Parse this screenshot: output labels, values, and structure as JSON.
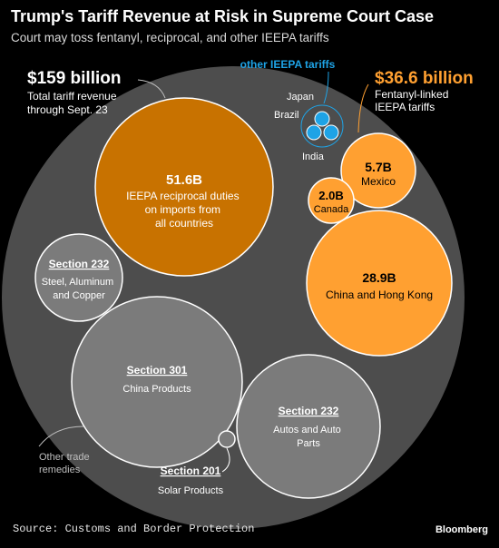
{
  "header": {
    "title": "Trump's Tariff Revenue at Risk in Supreme Court Case",
    "subtitle": "Court may toss fentanyl, reciprocal, and other IEEPA tariffs"
  },
  "footer": {
    "source": "Source: Customs and Border Protection",
    "brand": "Bloomberg"
  },
  "colors": {
    "background": "#000000",
    "outer": "#4d4d4d",
    "gray_bubble": "#7b7b7b",
    "reciprocal": "#c87200",
    "fentanyl": "#ffa031",
    "other_ieepa": "#1ea3e6"
  },
  "chart_data": {
    "type": "packed-bubble",
    "total": {
      "value_label": "$159 billion",
      "description": "Total tariff revenue through Sept. 23"
    },
    "fentanyl": {
      "value_label": "$36.6 billion",
      "description": "Fentanyl-linked IEEPA tariffs"
    },
    "other_ieepa_label": "other IEEPA tariffs",
    "other_ieepa_countries": [
      "Japan",
      "Brazil",
      "India"
    ],
    "other_trade_remedies_label": "Other trade remedies",
    "bubbles": [
      {
        "id": "reciprocal",
        "value": 51.6,
        "value_label": "51.6B",
        "label": "IEEPA reciprocal duties on imports from all countries",
        "group": "reciprocal"
      },
      {
        "id": "china-hk",
        "value": 28.9,
        "value_label": "28.9B",
        "label": "China and Hong Kong",
        "group": "fentanyl"
      },
      {
        "id": "mexico",
        "value": 5.7,
        "value_label": "5.7B",
        "label": "Mexico",
        "group": "fentanyl"
      },
      {
        "id": "canada",
        "value": 2.0,
        "value_label": "2.0B",
        "label": "Canada",
        "group": "fentanyl"
      },
      {
        "id": "s232-steel",
        "value_label": "Section 232",
        "label": "Steel, Aluminum and Copper",
        "group": "other"
      },
      {
        "id": "s301",
        "value_label": "Section 301",
        "label": "China Products",
        "group": "other"
      },
      {
        "id": "s232-autos",
        "value_label": "Section 232",
        "label": "Autos and Auto Parts",
        "group": "other"
      },
      {
        "id": "s201",
        "value_label": "Section 201",
        "label": "Solar Products",
        "group": "other"
      }
    ]
  }
}
